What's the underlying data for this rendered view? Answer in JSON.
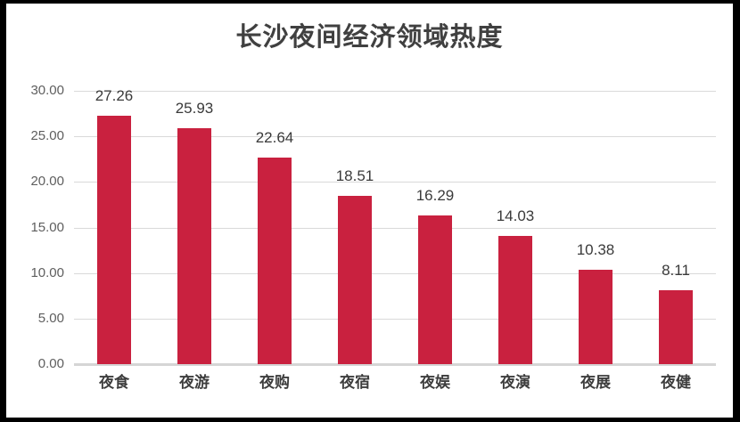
{
  "frame": {
    "border_color": "#000000",
    "background": "#FFFFFF"
  },
  "chart_data": {
    "type": "bar",
    "title": "长沙夜间经济领域热度",
    "categories": [
      "夜食",
      "夜游",
      "夜购",
      "夜宿",
      "夜娱",
      "夜演",
      "夜展",
      "夜健"
    ],
    "values": [
      27.26,
      25.93,
      22.64,
      18.51,
      16.29,
      14.03,
      10.38,
      8.11
    ],
    "value_labels": [
      "27.26",
      "25.93",
      "22.64",
      "18.51",
      "16.29",
      "14.03",
      "10.38",
      "8.11"
    ],
    "y_ticks": [
      "30.00",
      "25.00",
      "20.00",
      "15.00",
      "10.00",
      "5.00",
      "0.00"
    ],
    "ylim": [
      0,
      30
    ],
    "xlabel": "",
    "ylabel": "",
    "grid": true,
    "legend": "none",
    "colors": {
      "bar": "#C9213F",
      "gridline": "#D9D9D9",
      "axis_line": "#D5D5D5",
      "title": "#404040",
      "value_label": "#3A3A3A",
      "y_tick": "#5E5E5E",
      "category_label": "#3D3D3D"
    }
  }
}
